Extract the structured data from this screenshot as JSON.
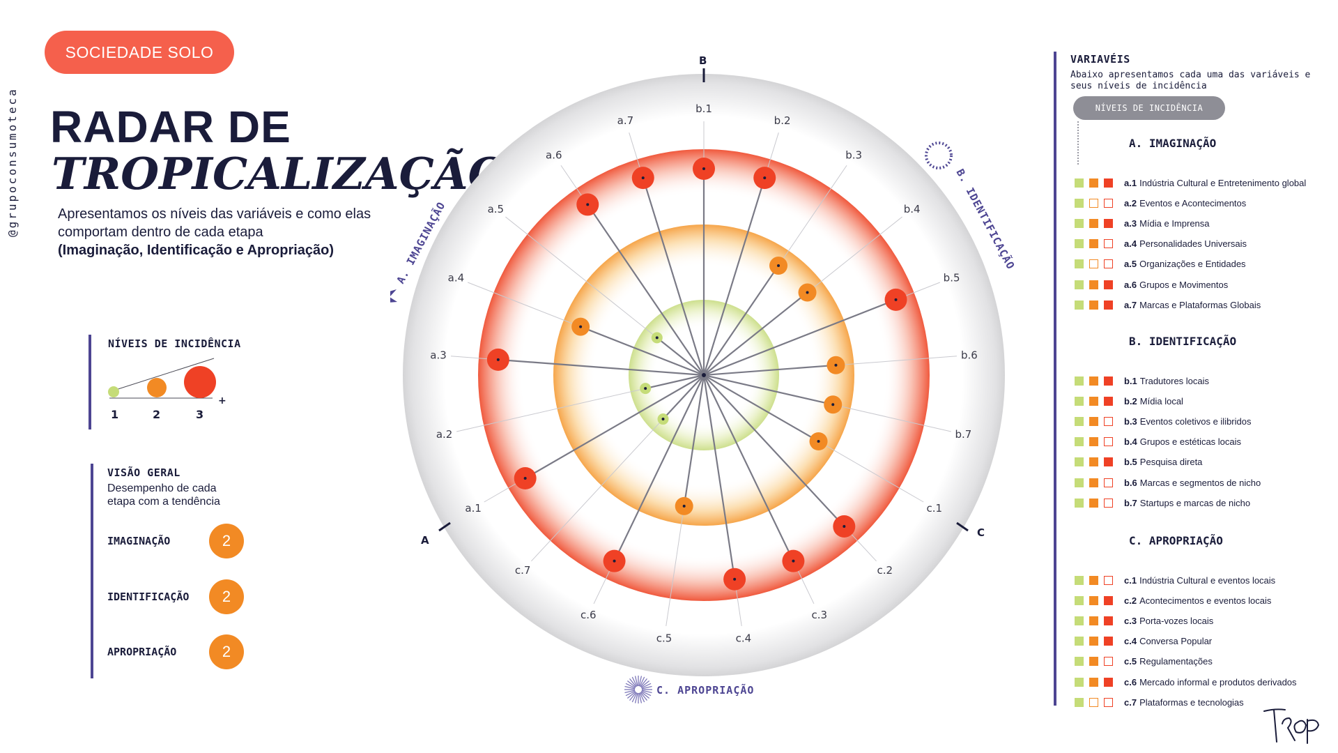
{
  "handle": "@grupoconsumoteca",
  "brand": "SOCIEDADE SOLO",
  "title_line1": "RADAR DE",
  "title_line2": "TROPICALIZAÇÃO",
  "intro_text": "Apresentamos os níveis das variáveis e como elas comportam dentro de cada etapa",
  "intro_bold": "(Imaginação, Identificação e Apropriação)",
  "legend": {
    "title": "NÍVEIS DE INCIDÊNCIA",
    "levels": [
      "1",
      "2",
      "3"
    ],
    "plus": "+"
  },
  "overview": {
    "title": "VISÃO GERAL",
    "description": "Desempenho de cada etapa com a tendência",
    "rows": [
      {
        "label": "IMAGINAÇÃO",
        "value": "2"
      },
      {
        "label": "IDENTIFICAÇÃO",
        "value": "2"
      },
      {
        "label": "APROPRIAÇÃO",
        "value": "2"
      }
    ]
  },
  "radar": {
    "axis_labels": {
      "A": "A",
      "B": "B",
      "C": "C"
    },
    "section_titles": {
      "imaginacao": "A. IMAGINAÇÃO",
      "identificacao": "B. IDENTIFICAÇÃO",
      "apropriacao": "C. APROPRIAÇÃO"
    },
    "colors": {
      "level1": "#c5dc78",
      "level2": "#f28a24",
      "level3": "#ef4125",
      "accent": "#4d4592"
    },
    "spokes": [
      {
        "code": "b.1",
        "level": 3
      },
      {
        "code": "b.2",
        "level": 3
      },
      {
        "code": "b.3",
        "level": 2
      },
      {
        "code": "b.4",
        "level": 2
      },
      {
        "code": "b.5",
        "level": 3
      },
      {
        "code": "b.6",
        "level": 2
      },
      {
        "code": "b.7",
        "level": 2
      },
      {
        "code": "c.1",
        "level": 2
      },
      {
        "code": "c.2",
        "level": 3
      },
      {
        "code": "c.3",
        "level": 3
      },
      {
        "code": "c.4",
        "level": 3
      },
      {
        "code": "c.5",
        "level": 2
      },
      {
        "code": "c.6",
        "level": 3
      },
      {
        "code": "c.7",
        "level": 1
      },
      {
        "code": "a.1",
        "level": 3
      },
      {
        "code": "a.2",
        "level": 1
      },
      {
        "code": "a.3",
        "level": 3
      },
      {
        "code": "a.4",
        "level": 2
      },
      {
        "code": "a.5",
        "level": 1
      },
      {
        "code": "a.6",
        "level": 3
      },
      {
        "code": "a.7",
        "level": 3
      }
    ]
  },
  "variables": {
    "title": "VARIAVÉIS",
    "description": "Abaixo apresentamos cada uma das variáveis e seus níveis de incidência",
    "levels_pill": "NÍVEIS DE INCIDÊNCIA",
    "groups": [
      {
        "title": "A. IMAGINAÇÃO",
        "items": [
          {
            "code": "a.1",
            "label": "Indústria Cultural e Entretenimento global",
            "level": 3
          },
          {
            "code": "a.2",
            "label": "Eventos e Acontecimentos",
            "level": 1
          },
          {
            "code": "a.3",
            "label": "Mídia e Imprensa",
            "level": 3
          },
          {
            "code": "a.4",
            "label": "Personalidades Universais",
            "level": 2
          },
          {
            "code": "a.5",
            "label": "Organizações e Entidades",
            "level": 1
          },
          {
            "code": "a.6",
            "label": "Grupos e Movimentos",
            "level": 3
          },
          {
            "code": "a.7",
            "label": "Marcas e Plataformas Globais",
            "level": 3
          }
        ]
      },
      {
        "title": "B. IDENTIFICAÇÃO",
        "items": [
          {
            "code": "b.1",
            "label": "Tradutores locais",
            "level": 3
          },
          {
            "code": "b.2",
            "label": "Mídia local",
            "level": 3
          },
          {
            "code": "b.3",
            "label": "Eventos coletivos e ilibridos",
            "level": 2
          },
          {
            "code": "b.4",
            "label": "Grupos e estéticas locais",
            "level": 2
          },
          {
            "code": "b.5",
            "label": "Pesquisa direta",
            "level": 3
          },
          {
            "code": "b.6",
            "label": "Marcas e segmentos de nicho",
            "level": 2
          },
          {
            "code": "b.7",
            "label": "Startups e marcas de nicho",
            "level": 2
          }
        ]
      },
      {
        "title": "C. APROPRIAÇÃO",
        "items": [
          {
            "code": "c.1",
            "label": "Indústria Cultural e eventos locais",
            "level": 2
          },
          {
            "code": "c.2",
            "label": "Acontecimentos e eventos locais",
            "level": 3
          },
          {
            "code": "c.3",
            "label": "Porta-vozes locais",
            "level": 3
          },
          {
            "code": "c.4",
            "label": "Conversa Popular",
            "level": 3
          },
          {
            "code": "c.5",
            "label": "Regulamentações",
            "level": 2
          },
          {
            "code": "c.6",
            "label": "Mercado informal e produtos derivados",
            "level": 3
          },
          {
            "code": "c.7",
            "label": "Plataformas e tecnologias",
            "level": 1
          }
        ]
      }
    ]
  },
  "signature": "TROP"
}
